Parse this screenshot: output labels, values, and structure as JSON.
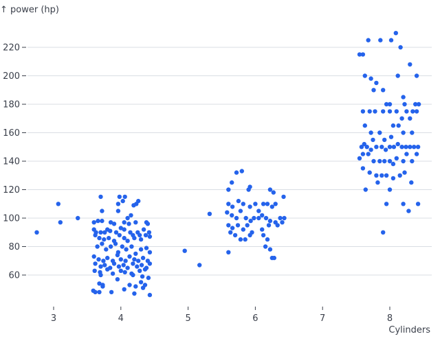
{
  "chart_data": {
    "type": "scatter",
    "title": "",
    "xlabel": "Cylinders",
    "ylabel": "↑ power (hp)",
    "xlim": [
      2.7,
      8.55
    ],
    "ylim": [
      38,
      235
    ],
    "x_ticks": [
      "3",
      "4",
      "5",
      "6",
      "7",
      "8"
    ],
    "y_ticks": [
      "60",
      "80",
      "100",
      "120",
      "140",
      "160",
      "180",
      "200",
      "220"
    ],
    "grid": "horizontal",
    "point_color": "#2563eb",
    "points": [
      [
        2.75,
        90
      ],
      [
        3.07,
        110
      ],
      [
        3.1,
        97
      ],
      [
        3.36,
        100
      ],
      [
        4.95,
        77
      ],
      [
        5.17,
        67
      ],
      [
        5.32,
        103
      ],
      [
        3.7,
        115
      ],
      [
        3.98,
        115
      ],
      [
        4.06,
        115
      ],
      [
        4.03,
        112
      ],
      [
        4.26,
        112
      ],
      [
        3.96,
        110
      ],
      [
        4.23,
        110
      ],
      [
        4.19,
        109
      ],
      [
        3.72,
        105
      ],
      [
        3.96,
        105
      ],
      [
        4.15,
        102
      ],
      [
        4.1,
        100
      ],
      [
        3.6,
        97
      ],
      [
        3.66,
        98
      ],
      [
        3.72,
        98
      ],
      [
        3.85,
        97
      ],
      [
        3.9,
        96
      ],
      [
        4.05,
        97
      ],
      [
        4.12,
        96
      ],
      [
        4.22,
        97
      ],
      [
        4.38,
        97
      ],
      [
        4.4,
        96
      ],
      [
        3.6,
        92
      ],
      [
        3.63,
        90
      ],
      [
        3.7,
        90
      ],
      [
        3.76,
        90
      ],
      [
        3.8,
        92
      ],
      [
        3.84,
        91
      ],
      [
        3.93,
        90
      ],
      [
        4.0,
        93
      ],
      [
        4.05,
        92
      ],
      [
        4.14,
        90
      ],
      [
        4.18,
        88
      ],
      [
        4.25,
        90
      ],
      [
        4.28,
        88
      ],
      [
        4.34,
        92
      ],
      [
        4.42,
        90
      ],
      [
        3.62,
        88
      ],
      [
        3.68,
        86
      ],
      [
        3.75,
        85
      ],
      [
        3.82,
        86
      ],
      [
        3.9,
        84
      ],
      [
        3.98,
        88
      ],
      [
        4.05,
        86
      ],
      [
        4.1,
        84
      ],
      [
        4.2,
        86
      ],
      [
        4.3,
        85
      ],
      [
        4.37,
        88
      ],
      [
        4.43,
        87
      ],
      [
        3.65,
        80
      ],
      [
        3.72,
        82
      ],
      [
        3.78,
        78
      ],
      [
        3.85,
        80
      ],
      [
        3.92,
        82
      ],
      [
        3.96,
        76
      ],
      [
        4.02,
        80
      ],
      [
        4.08,
        78
      ],
      [
        4.16,
        80
      ],
      [
        4.22,
        75
      ],
      [
        4.3,
        78
      ],
      [
        4.38,
        79
      ],
      [
        4.43,
        76
      ],
      [
        3.6,
        73
      ],
      [
        3.67,
        71
      ],
      [
        3.74,
        70
      ],
      [
        3.8,
        72
      ],
      [
        3.88,
        70
      ],
      [
        3.95,
        74
      ],
      [
        4.0,
        71
      ],
      [
        4.07,
        70
      ],
      [
        4.13,
        73
      ],
      [
        4.2,
        71
      ],
      [
        4.26,
        70
      ],
      [
        4.33,
        72
      ],
      [
        4.4,
        70
      ],
      [
        3.62,
        68
      ],
      [
        3.7,
        66
      ],
      [
        3.76,
        67
      ],
      [
        3.84,
        65
      ],
      [
        3.9,
        68
      ],
      [
        3.97,
        66
      ],
      [
        4.04,
        67
      ],
      [
        4.1,
        65
      ],
      [
        4.18,
        68
      ],
      [
        4.24,
        66
      ],
      [
        4.31,
        67
      ],
      [
        4.38,
        65
      ],
      [
        4.43,
        68
      ],
      [
        3.61,
        63
      ],
      [
        3.69,
        62
      ],
      [
        3.8,
        64
      ],
      [
        3.88,
        61
      ],
      [
        4.0,
        63
      ],
      [
        4.06,
        62
      ],
      [
        4.16,
        61
      ],
      [
        4.28,
        63
      ],
      [
        4.36,
        64
      ],
      [
        3.7,
        60
      ],
      [
        3.95,
        57
      ],
      [
        4.18,
        60
      ],
      [
        4.32,
        59
      ],
      [
        4.41,
        58
      ],
      [
        3.68,
        54
      ],
      [
        3.73,
        52
      ],
      [
        3.73,
        53
      ],
      [
        4.13,
        53
      ],
      [
        4.22,
        52
      ],
      [
        4.3,
        55
      ],
      [
        4.36,
        53
      ],
      [
        3.59,
        49
      ],
      [
        3.62,
        48
      ],
      [
        3.68,
        48
      ],
      [
        3.86,
        48
      ],
      [
        4.05,
        50
      ],
      [
        4.2,
        47
      ],
      [
        4.33,
        51
      ],
      [
        4.43,
        46
      ],
      [
        5.6,
        120
      ],
      [
        5.65,
        125
      ],
      [
        5.72,
        132
      ],
      [
        5.8,
        133
      ],
      [
        5.9,
        120
      ],
      [
        5.92,
        122
      ],
      [
        6.22,
        120
      ],
      [
        6.27,
        118
      ],
      [
        6.42,
        115
      ],
      [
        5.6,
        110
      ],
      [
        5.66,
        108
      ],
      [
        5.75,
        112
      ],
      [
        5.82,
        110
      ],
      [
        5.92,
        108
      ],
      [
        6.0,
        110
      ],
      [
        6.05,
        105
      ],
      [
        6.12,
        110
      ],
      [
        6.18,
        110
      ],
      [
        6.25,
        108
      ],
      [
        6.3,
        110
      ],
      [
        5.58,
        104
      ],
      [
        5.65,
        102
      ],
      [
        5.72,
        100
      ],
      [
        5.78,
        105
      ],
      [
        5.86,
        100
      ],
      [
        5.93,
        98
      ],
      [
        5.98,
        100
      ],
      [
        6.05,
        100
      ],
      [
        6.1,
        102
      ],
      [
        6.16,
        100
      ],
      [
        6.22,
        98
      ],
      [
        6.3,
        97
      ],
      [
        6.37,
        100
      ],
      [
        6.43,
        100
      ],
      [
        6.4,
        97
      ],
      [
        5.6,
        95
      ],
      [
        5.66,
        93
      ],
      [
        5.74,
        95
      ],
      [
        5.82,
        92
      ],
      [
        5.88,
        95
      ],
      [
        5.95,
        90
      ],
      [
        6.1,
        92
      ],
      [
        6.2,
        95
      ],
      [
        6.33,
        95
      ],
      [
        5.63,
        90
      ],
      [
        5.7,
        88
      ],
      [
        5.78,
        85
      ],
      [
        5.85,
        85
      ],
      [
        5.92,
        88
      ],
      [
        6.12,
        88
      ],
      [
        6.18,
        85
      ],
      [
        6.15,
        80
      ],
      [
        6.22,
        78
      ],
      [
        6.25,
        72
      ],
      [
        6.28,
        72
      ],
      [
        5.6,
        76
      ],
      [
        7.6,
        215
      ],
      [
        7.68,
        225
      ],
      [
        7.86,
        225
      ],
      [
        8.02,
        225
      ],
      [
        8.09,
        230
      ],
      [
        7.55,
        215
      ],
      [
        7.63,
        200
      ],
      [
        8.12,
        200
      ],
      [
        8.16,
        220
      ],
      [
        8.3,
        208
      ],
      [
        8.4,
        200
      ],
      [
        7.72,
        198
      ],
      [
        7.8,
        195
      ],
      [
        7.76,
        190
      ],
      [
        7.9,
        190
      ],
      [
        7.95,
        180
      ],
      [
        8.0,
        180
      ],
      [
        8.2,
        185
      ],
      [
        8.22,
        180
      ],
      [
        8.25,
        175
      ],
      [
        8.34,
        175
      ],
      [
        8.38,
        180
      ],
      [
        7.6,
        175
      ],
      [
        7.7,
        175
      ],
      [
        7.78,
        175
      ],
      [
        7.9,
        175
      ],
      [
        8.0,
        175
      ],
      [
        8.1,
        175
      ],
      [
        8.18,
        170
      ],
      [
        8.3,
        170
      ],
      [
        8.4,
        175
      ],
      [
        8.43,
        180
      ],
      [
        7.63,
        165
      ],
      [
        7.72,
        160
      ],
      [
        7.85,
        160
      ],
      [
        8.05,
        165
      ],
      [
        8.13,
        165
      ],
      [
        8.2,
        160
      ],
      [
        8.33,
        160
      ],
      [
        7.75,
        155
      ],
      [
        7.58,
        150
      ],
      [
        7.62,
        152
      ],
      [
        7.66,
        150
      ],
      [
        7.72,
        148
      ],
      [
        7.8,
        150
      ],
      [
        7.88,
        150
      ],
      [
        7.94,
        148
      ],
      [
        8.0,
        150
      ],
      [
        8.06,
        150
      ],
      [
        8.12,
        152
      ],
      [
        8.18,
        150
      ],
      [
        8.24,
        150
      ],
      [
        8.3,
        150
      ],
      [
        8.36,
        150
      ],
      [
        8.42,
        150
      ],
      [
        7.92,
        155
      ],
      [
        8.02,
        157
      ],
      [
        7.6,
        145
      ],
      [
        7.68,
        145
      ],
      [
        7.76,
        140
      ],
      [
        7.85,
        140
      ],
      [
        7.92,
        140
      ],
      [
        8.0,
        140
      ],
      [
        8.05,
        138
      ],
      [
        8.1,
        142
      ],
      [
        8.2,
        140
      ],
      [
        8.25,
        145
      ],
      [
        8.33,
        140
      ],
      [
        8.4,
        145
      ],
      [
        7.55,
        142
      ],
      [
        7.6,
        135
      ],
      [
        7.7,
        132
      ],
      [
        7.8,
        130
      ],
      [
        7.88,
        130
      ],
      [
        7.95,
        130
      ],
      [
        8.05,
        128
      ],
      [
        8.15,
        130
      ],
      [
        8.22,
        132
      ],
      [
        7.64,
        120
      ],
      [
        7.82,
        125
      ],
      [
        8.0,
        120
      ],
      [
        8.32,
        125
      ],
      [
        7.95,
        110
      ],
      [
        8.2,
        110
      ],
      [
        8.42,
        110
      ],
      [
        8.28,
        105
      ],
      [
        7.9,
        90
      ]
    ]
  }
}
